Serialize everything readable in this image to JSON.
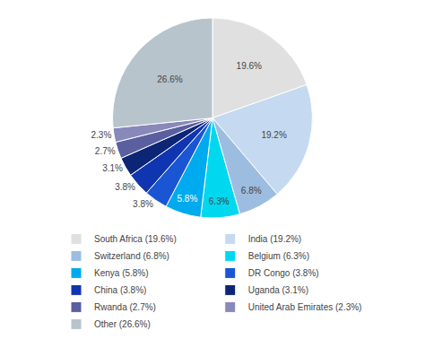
{
  "chart_data": {
    "type": "pie",
    "categories": [
      "South Africa (19.6%)",
      "India (19.2%)",
      "Switzerland (6.8%)",
      "Belgium (6.3%)",
      "Kenya (5.8%)",
      "DR Congo (3.8%)",
      "China (3.8%)",
      "Uganda (3.1%)",
      "Rwanda (2.7%)",
      "United Arab Emirates (2.3%)",
      "Other (26.6%)"
    ],
    "values": [
      19.6,
      19.2,
      6.8,
      6.3,
      5.8,
      3.8,
      3.8,
      3.1,
      2.7,
      2.3,
      26.6
    ],
    "value_labels": [
      "19.6%",
      "19.2%",
      "6.8%",
      "6.3%",
      "5.8%",
      "3.8%",
      "3.8%",
      "3.1%",
      "2.7%",
      "2.3%",
      "26.6%"
    ],
    "colors": [
      "#e0e0e0",
      "#c5daf0",
      "#9dbde0",
      "#00d8f0",
      "#00aaee",
      "#1a56d4",
      "#1035b0",
      "#0d2575",
      "#5a5fa0",
      "#8888bb",
      "#b8c4cc"
    ],
    "data_labels": true,
    "legend": "bottom"
  }
}
